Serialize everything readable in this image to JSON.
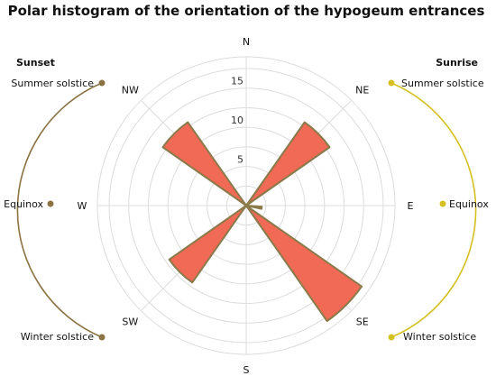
{
  "chart_data": {
    "type": "polar-histogram",
    "title": "Polar histogram of the orientation of the hypogeum entrances",
    "directions": [
      "N",
      "NE",
      "E",
      "SE",
      "S",
      "SW",
      "W",
      "NW"
    ],
    "radial_ticks": [
      5,
      10,
      15
    ],
    "rmax": 19,
    "bars": [
      {
        "center_deg": 45,
        "width_deg": 20,
        "value": 13
      },
      {
        "center_deg": 135,
        "width_deg": 20,
        "value": 18
      },
      {
        "center_deg": 225,
        "width_deg": 20,
        "value": 12
      },
      {
        "center_deg": 315,
        "width_deg": 20,
        "value": 13
      },
      {
        "center_deg": 98,
        "width_deg": 8,
        "value": 2
      }
    ],
    "bar_fill": "#f06a55",
    "bar_stroke": "#8a7a4a",
    "sunset": {
      "title": "Sunset",
      "color": "#8b7344",
      "labels": [
        "Summer solstice",
        "Equinox",
        "Winter solstice"
      ]
    },
    "sunrise": {
      "title": "Sunrise",
      "color": "#d4c020",
      "labels": [
        "Summer solstice",
        "Equinox",
        "Winter solstice"
      ]
    }
  }
}
